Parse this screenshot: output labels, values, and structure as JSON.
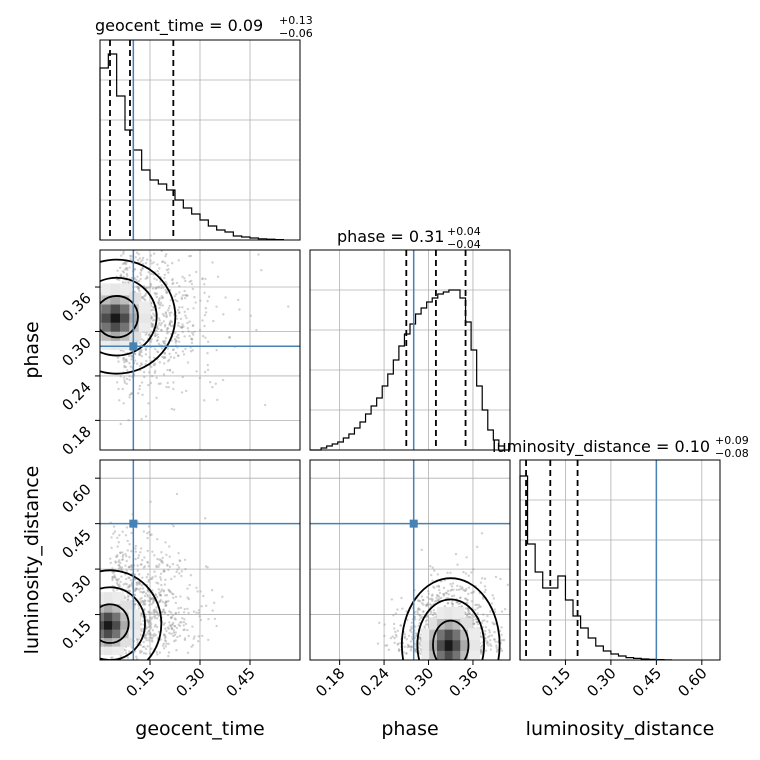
{
  "chart_data": {
    "type": "corner",
    "parameters": [
      "geocent_time",
      "phase",
      "luminosity_distance"
    ],
    "truths": {
      "geocent_time": 0.1,
      "phase": 0.28,
      "luminosity_distance": 0.45
    },
    "titles": {
      "geocent_time": {
        "text": "geocent_time = 0.09",
        "sup": "+0.13",
        "sub": "−0.06"
      },
      "phase": {
        "text": "phase = 0.31",
        "sup": "+0.04",
        "sub": "−0.04"
      },
      "luminosity_distance": {
        "text": "luminosity_distance = 0.10",
        "sup": "+0.09",
        "sub": "−0.08"
      }
    },
    "axes": {
      "geocent_time": {
        "range": [
          0.0,
          0.6
        ],
        "ticks": [
          0.15,
          0.3,
          0.45
        ],
        "tick_labels": [
          "0.15",
          "0.30",
          "0.45"
        ],
        "label": "geocent_time"
      },
      "phase": {
        "range": [
          0.14,
          0.41
        ],
        "ticks": [
          0.18,
          0.24,
          0.3,
          0.36
        ],
        "tick_labels": [
          "0.18",
          "0.24",
          "0.30",
          "0.36"
        ],
        "label": "phase"
      },
      "luminosity_distance": {
        "range": [
          0.0,
          0.66
        ],
        "ticks": [
          0.15,
          0.3,
          0.45,
          0.6
        ],
        "tick_labels": [
          "0.15",
          "0.30",
          "0.45",
          "0.60"
        ],
        "label": "luminosity_distance"
      }
    },
    "histograms": {
      "geocent_time": {
        "bin_edges": [
          0.0,
          0.025,
          0.05,
          0.075,
          0.1,
          0.125,
          0.15,
          0.175,
          0.2,
          0.225,
          0.25,
          0.275,
          0.3,
          0.325,
          0.35,
          0.375,
          0.4,
          0.425,
          0.45,
          0.475,
          0.5,
          0.525,
          0.55
        ],
        "heights": [
          0.86,
          0.93,
          0.72,
          0.55,
          0.45,
          0.35,
          0.3,
          0.28,
          0.25,
          0.2,
          0.16,
          0.13,
          0.1,
          0.07,
          0.05,
          0.04,
          0.02,
          0.015,
          0.01,
          0.006,
          0.004,
          0.002
        ],
        "quantiles": [
          0.03,
          0.09,
          0.22
        ]
      },
      "phase": {
        "bin_edges": [
          0.14,
          0.1475,
          0.155,
          0.1625,
          0.17,
          0.1775,
          0.185,
          0.1925,
          0.2,
          0.2075,
          0.215,
          0.2225,
          0.23,
          0.2375,
          0.245,
          0.2525,
          0.26,
          0.2675,
          0.275,
          0.2825,
          0.29,
          0.2975,
          0.305,
          0.3125,
          0.32,
          0.3275,
          0.335,
          0.3425,
          0.35,
          0.3575,
          0.365,
          0.3725,
          0.38,
          0.3875,
          0.395,
          0.4025,
          0.41
        ],
        "heights": [
          0,
          0,
          0.01,
          0.02,
          0.03,
          0.04,
          0.06,
          0.08,
          0.11,
          0.14,
          0.18,
          0.22,
          0.26,
          0.32,
          0.38,
          0.45,
          0.52,
          0.58,
          0.63,
          0.68,
          0.71,
          0.74,
          0.76,
          0.78,
          0.79,
          0.8,
          0.8,
          0.76,
          0.64,
          0.5,
          0.32,
          0.2,
          0.1,
          0.05,
          0.02,
          0.0
        ],
        "quantiles": [
          0.27,
          0.31,
          0.35
        ]
      },
      "luminosity_distance": {
        "bin_edges": [
          0.0,
          0.025,
          0.05,
          0.075,
          0.1,
          0.125,
          0.15,
          0.175,
          0.2,
          0.225,
          0.25,
          0.275,
          0.3,
          0.325,
          0.35,
          0.375,
          0.4,
          0.425,
          0.45,
          0.475,
          0.5
        ],
        "heights": [
          0.92,
          0.58,
          0.44,
          0.36,
          0.36,
          0.42,
          0.3,
          0.22,
          0.16,
          0.11,
          0.07,
          0.045,
          0.03,
          0.02,
          0.012,
          0.008,
          0.005,
          0.003,
          0.002,
          0.001
        ],
        "quantiles": [
          0.02,
          0.1,
          0.19
        ]
      }
    },
    "density_2d": {
      "phase_vs_geocent_time": {
        "peak": [
          0.05,
          0.32
        ],
        "spread": [
          0.08,
          0.035
        ]
      },
      "luminosity_distance_vs_geocent_time": {
        "peak": [
          0.03,
          0.12
        ],
        "spread": [
          0.07,
          0.08
        ]
      },
      "luminosity_distance_vs_phase": {
        "peak": [
          0.33,
          0.05
        ],
        "spread": [
          0.03,
          0.1
        ]
      }
    }
  }
}
